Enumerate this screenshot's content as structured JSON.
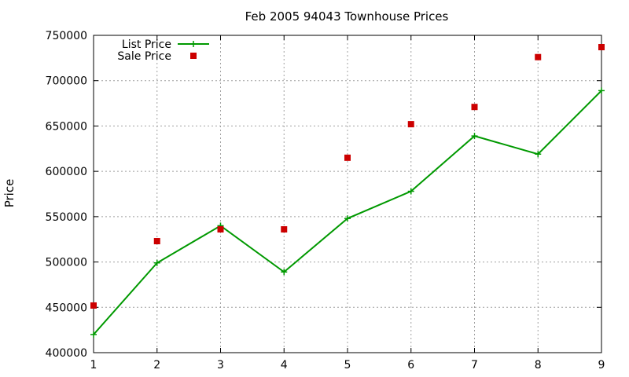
{
  "chart_data": {
    "type": "line",
    "title": "Feb 2005 94043 Townhouse Prices",
    "xlabel": "",
    "ylabel": "Price",
    "x": [
      1,
      2,
      3,
      4,
      5,
      6,
      7,
      8,
      9
    ],
    "xlim": [
      1,
      9
    ],
    "ylim": [
      400000,
      750000
    ],
    "xticks": [
      "1",
      "2",
      "3",
      "4",
      "5",
      "6",
      "7",
      "8",
      "9"
    ],
    "yticks": [
      "400000",
      "450000",
      "500000",
      "550000",
      "600000",
      "650000",
      "700000",
      "750000"
    ],
    "grid": true,
    "legend_position": "top-left",
    "series": [
      {
        "name": "List Price",
        "kind": "line+cross",
        "color": "#009900",
        "values": [
          420000,
          499000,
          540000,
          489000,
          548000,
          578000,
          639000,
          619000,
          689000
        ]
      },
      {
        "name": "Sale Price",
        "kind": "square-points",
        "color": "#cc0000",
        "values": [
          452000,
          523000,
          536000,
          536000,
          615000,
          652000,
          671000,
          726000,
          737000
        ]
      }
    ]
  }
}
